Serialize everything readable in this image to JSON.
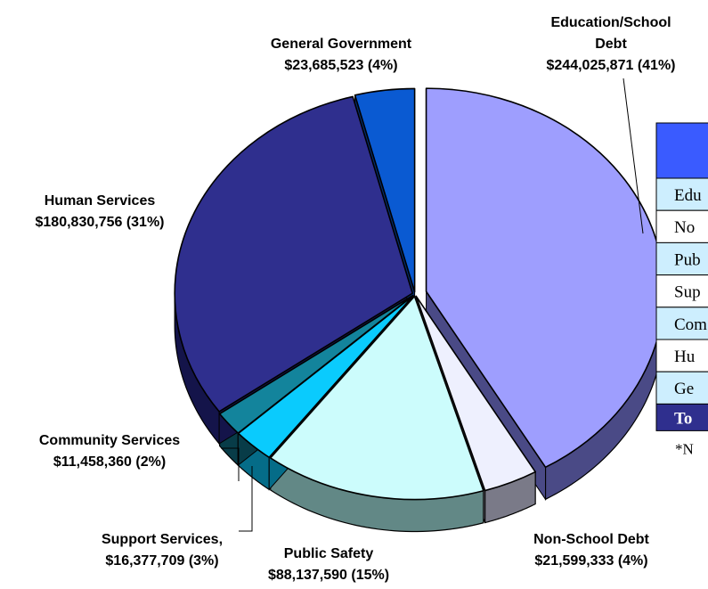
{
  "chart_data": {
    "type": "pie",
    "slices": [
      {
        "label_lines": [
          "Education/School",
          "Debt",
          "$244,025,871 (41%)"
        ],
        "value": 244025871,
        "percent": 41,
        "color": "#9e9efe",
        "dark": "#4a4a86"
      },
      {
        "label_lines": [
          "Non-School Debt",
          "$21,599,333 (4%)"
        ],
        "value": 21599333,
        "percent": 4,
        "color": "#eef0fe",
        "dark": "#7a7a88"
      },
      {
        "label_lines": [
          "Public Safety",
          "$88,137,590 (15%)"
        ],
        "value": 88137590,
        "percent": 15,
        "color": "#ccfcfc",
        "dark": "#628886"
      },
      {
        "label_lines": [
          "Support Services,",
          "$16,377,709 (3%)"
        ],
        "value": 16377709,
        "percent": 3,
        "color": "#0acbfd",
        "dark": "#056c88"
      },
      {
        "label_lines": [
          "Community Services",
          "$11,458,360 (2%)"
        ],
        "value": 11458360,
        "percent": 2,
        "color": "#13849c",
        "dark": "#083c48"
      },
      {
        "label_lines": [
          "Human Services",
          "$180,830,756 (31%)"
        ],
        "value": 180830756,
        "percent": 31,
        "color": "#2f2f8e",
        "dark": "#14144a"
      },
      {
        "label_lines": [
          "General Government",
          "$23,685,523 (4%)"
        ],
        "value": 23685523,
        "percent": 4,
        "color": "#0a5ad2",
        "dark": "#052c6c"
      }
    ]
  },
  "table": {
    "colors": {
      "header": "#3a5bff",
      "row_light": "#cdeefe",
      "row_white": "#ffffff",
      "total": "#2f2f8e"
    },
    "rows": [
      "Edu",
      "No",
      "Pub",
      "Sup",
      "Com",
      "Hu",
      "Ge"
    ],
    "total_label": "To",
    "footnote": "*N"
  }
}
